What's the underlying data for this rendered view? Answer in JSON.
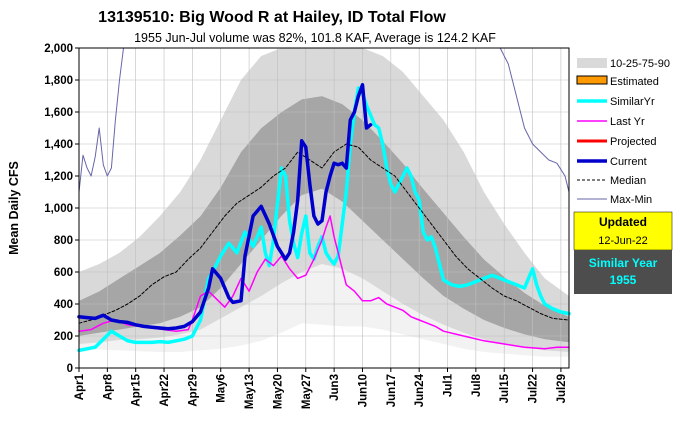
{
  "chart_data": {
    "type": "line",
    "title": "13139510: Big Wood R at Hailey, ID Total Flow",
    "subtitle": "1955 Jun-Jul volume was 82%, 101.8 KAF, Average is 124.2 KAF",
    "ylabel": "Mean Daily CFS",
    "xlabel": "",
    "ylim": [
      0,
      2000
    ],
    "yticks": [
      0,
      200,
      400,
      600,
      800,
      1000,
      1200,
      1400,
      1600,
      1800,
      2000
    ],
    "ytick_labels": [
      "0",
      "200",
      "400",
      "600",
      "800",
      "1,000",
      "1,200",
      "1,400",
      "1,600",
      "1,800",
      "2,000"
    ],
    "x_day_range": [
      0,
      121
    ],
    "xtick_days": [
      0,
      7,
      14,
      21,
      28,
      35,
      42,
      49,
      56,
      63,
      70,
      77,
      84,
      91,
      98,
      105,
      112,
      119
    ],
    "xtick_labels": [
      "Apr1",
      "Apr8",
      "Apr15",
      "Apr22",
      "Apr29",
      "May6",
      "May13",
      "May20",
      "May27",
      "Jun3",
      "Jun10",
      "Jun17",
      "Jun24",
      "Jul1",
      "Jul8",
      "Jul15",
      "Jul22",
      "Jul29"
    ],
    "grid": true,
    "bands": {
      "x": [
        0,
        5,
        10,
        15,
        20,
        25,
        30,
        35,
        40,
        45,
        50,
        55,
        60,
        65,
        70,
        75,
        80,
        85,
        90,
        95,
        100,
        105,
        110,
        115,
        121
      ],
      "min": [
        120,
        115,
        110,
        105,
        100,
        100,
        110,
        120,
        140,
        170,
        220,
        280,
        270,
        260,
        260,
        240,
        210,
        180,
        150,
        120,
        100,
        90,
        80,
        70,
        70
      ],
      "p10": [
        150,
        160,
        175,
        180,
        190,
        210,
        240,
        310,
        380,
        450,
        530,
        600,
        650,
        620,
        560,
        480,
        400,
        330,
        270,
        220,
        180,
        150,
        130,
        110,
        100
      ],
      "p25": [
        200,
        220,
        240,
        260,
        280,
        320,
        380,
        500,
        650,
        800,
        950,
        1080,
        1120,
        1040,
        920,
        800,
        680,
        560,
        450,
        370,
        300,
        250,
        210,
        180,
        160
      ],
      "p75": [
        420,
        480,
        560,
        640,
        720,
        830,
        950,
        1130,
        1350,
        1500,
        1600,
        1680,
        1700,
        1650,
        1550,
        1420,
        1280,
        1120,
        970,
        820,
        680,
        570,
        470,
        390,
        320
      ],
      "p90": [
        600,
        650,
        720,
        820,
        950,
        1100,
        1300,
        1550,
        1800,
        1950,
        2000,
        2000,
        2000,
        2000,
        2000,
        1950,
        1850,
        1700,
        1550,
        1350,
        1100,
        900,
        720,
        560,
        450
      ],
      "max": [
        1050,
        1250,
        1650,
        2000,
        2000,
        2000,
        2000,
        2000,
        2000,
        2000,
        2000,
        2000,
        2000,
        2000,
        2000,
        2000,
        2000,
        2000,
        2000,
        2000,
        2000,
        2000,
        1700,
        1350,
        1150
      ]
    },
    "series": [
      {
        "name": "SimilarYr",
        "color": "#00ffff",
        "width": 3.5,
        "x": [
          0,
          2,
          4,
          6,
          8,
          10,
          12,
          14,
          16,
          18,
          20,
          22,
          24,
          26,
          28,
          30,
          32,
          33,
          35,
          37,
          39,
          41,
          43,
          45,
          46,
          47,
          48,
          50,
          51,
          52,
          53,
          54,
          55,
          56,
          57,
          58,
          59,
          60,
          61,
          62,
          63,
          64,
          65,
          66,
          67,
          68,
          69,
          70,
          71,
          72,
          73,
          74,
          75,
          76,
          77,
          78,
          79,
          80,
          81,
          82,
          83,
          84,
          85,
          86,
          87,
          88,
          89,
          90,
          92,
          94,
          96,
          98,
          100,
          102,
          104,
          106,
          108,
          110,
          111,
          112,
          113,
          114,
          115,
          117,
          119,
          121
        ],
        "values": [
          110,
          120,
          130,
          180,
          230,
          200,
          170,
          160,
          160,
          160,
          165,
          160,
          170,
          180,
          200,
          300,
          560,
          600,
          700,
          780,
          720,
          850,
          760,
          880,
          720,
          640,
          800,
          1250,
          1200,
          920,
          780,
          690,
          840,
          950,
          720,
          680,
          760,
          820,
          720,
          680,
          650,
          700,
          900,
          1100,
          1400,
          1600,
          1750,
          1720,
          1640,
          1580,
          1520,
          1500,
          1400,
          1250,
          1150,
          1100,
          1150,
          1200,
          1250,
          1200,
          1100,
          1050,
          850,
          800,
          820,
          750,
          650,
          550,
          520,
          510,
          520,
          540,
          560,
          580,
          560,
          540,
          520,
          500,
          560,
          620,
          520,
          450,
          400,
          370,
          350,
          340
        ]
      },
      {
        "name": "Last Yr",
        "color": "#ff00ff",
        "width": 1.5,
        "x": [
          0,
          3,
          6,
          9,
          12,
          15,
          18,
          21,
          24,
          27,
          28,
          30,
          32,
          34,
          36,
          38,
          40,
          42,
          44,
          46,
          48,
          50,
          52,
          54,
          56,
          58,
          60,
          61,
          62,
          63,
          64,
          65,
          66,
          68,
          70,
          72,
          74,
          76,
          78,
          80,
          82,
          84,
          86,
          88,
          90,
          95,
          100,
          105,
          110,
          115,
          118,
          121
        ],
        "values": [
          230,
          240,
          280,
          300,
          270,
          260,
          250,
          240,
          230,
          240,
          300,
          450,
          480,
          430,
          380,
          450,
          560,
          480,
          600,
          680,
          640,
          700,
          620,
          560,
          580,
          680,
          800,
          880,
          950,
          820,
          720,
          620,
          520,
          480,
          420,
          420,
          440,
          400,
          380,
          360,
          320,
          300,
          280,
          260,
          230,
          200,
          170,
          150,
          130,
          120,
          130,
          130
        ]
      },
      {
        "name": "Median",
        "color": "#000000",
        "width": 1,
        "dash": "3,2",
        "x": [
          0,
          3,
          6,
          9,
          12,
          15,
          18,
          21,
          24,
          27,
          30,
          33,
          36,
          39,
          42,
          45,
          48,
          51,
          54,
          57,
          60,
          63,
          66,
          69,
          72,
          75,
          78,
          81,
          84,
          87,
          90,
          93,
          96,
          99,
          102,
          105,
          108,
          111,
          114,
          117,
          121
        ],
        "values": [
          280,
          300,
          330,
          360,
          400,
          450,
          520,
          570,
          600,
          680,
          750,
          850,
          950,
          1030,
          1080,
          1130,
          1200,
          1250,
          1350,
          1300,
          1250,
          1350,
          1400,
          1380,
          1300,
          1250,
          1200,
          1100,
          1000,
          900,
          800,
          700,
          620,
          560,
          500,
          450,
          420,
          380,
          340,
          310,
          300
        ]
      },
      {
        "name": "Max-Min",
        "color": "#6666aa",
        "width": 1,
        "x": [
          0,
          1,
          2,
          3,
          4,
          5,
          6,
          7,
          8,
          9,
          10,
          11,
          12,
          13,
          14,
          15,
          16
        ],
        "values": [
          1100,
          1330,
          1250,
          1200,
          1320,
          1500,
          1270,
          1200,
          1250,
          1550,
          1800,
          2000,
          2000,
          2000,
          2000,
          2000,
          2000
        ]
      },
      {
        "name": "Max-Min-end",
        "color": "#6666aa",
        "width": 1,
        "x": [
          104,
          106,
          108,
          110,
          112,
          114,
          116,
          118,
          120,
          121
        ],
        "values": [
          2000,
          1900,
          1700,
          1500,
          1400,
          1350,
          1300,
          1280,
          1200,
          1100
        ]
      },
      {
        "name": "Current",
        "color": "#0000cc",
        "width": 3.5,
        "x": [
          0,
          2,
          4,
          6,
          8,
          10,
          12,
          14,
          16,
          18,
          20,
          22,
          24,
          26,
          28,
          30,
          32,
          33,
          35,
          37,
          38,
          40,
          41,
          43,
          45,
          47,
          49,
          51,
          52,
          53,
          54,
          55,
          56,
          57,
          58,
          59,
          60,
          61,
          62,
          63,
          64,
          65,
          66,
          67,
          68,
          69,
          70,
          71,
          72
        ],
        "values": [
          320,
          315,
          310,
          330,
          300,
          290,
          285,
          270,
          260,
          255,
          250,
          245,
          250,
          260,
          290,
          350,
          500,
          620,
          560,
          440,
          410,
          420,
          700,
          950,
          1010,
          900,
          760,
          680,
          720,
          850,
          1050,
          1420,
          1380,
          1150,
          950,
          900,
          920,
          1100,
          1200,
          1280,
          1270,
          1280,
          1250,
          1550,
          1600,
          1700,
          1770,
          1500,
          1520
        ]
      }
    ],
    "legend": {
      "placement": "right",
      "entries": [
        "10-25-75-90",
        "Estimated",
        "SimilarYr",
        "Last Yr",
        "Projected",
        "Current",
        "Median",
        "Max-Min"
      ]
    },
    "annotations": {
      "updated_label": "Updated",
      "updated_date": "12-Jun-22",
      "similar_year_label": "Similar Year",
      "similar_year": "1955"
    }
  },
  "colors": {
    "band_p10_p90": "#d9d9d9",
    "band_p25_p75": "#a6a6a6",
    "band_min_p10": "#f2f2f2",
    "updated_box": "#ffff00",
    "similar_box": "#4d4d4d",
    "similar_text": "#00ffff",
    "estimated_fill": "#ff9900",
    "projected": "#ff0000"
  }
}
